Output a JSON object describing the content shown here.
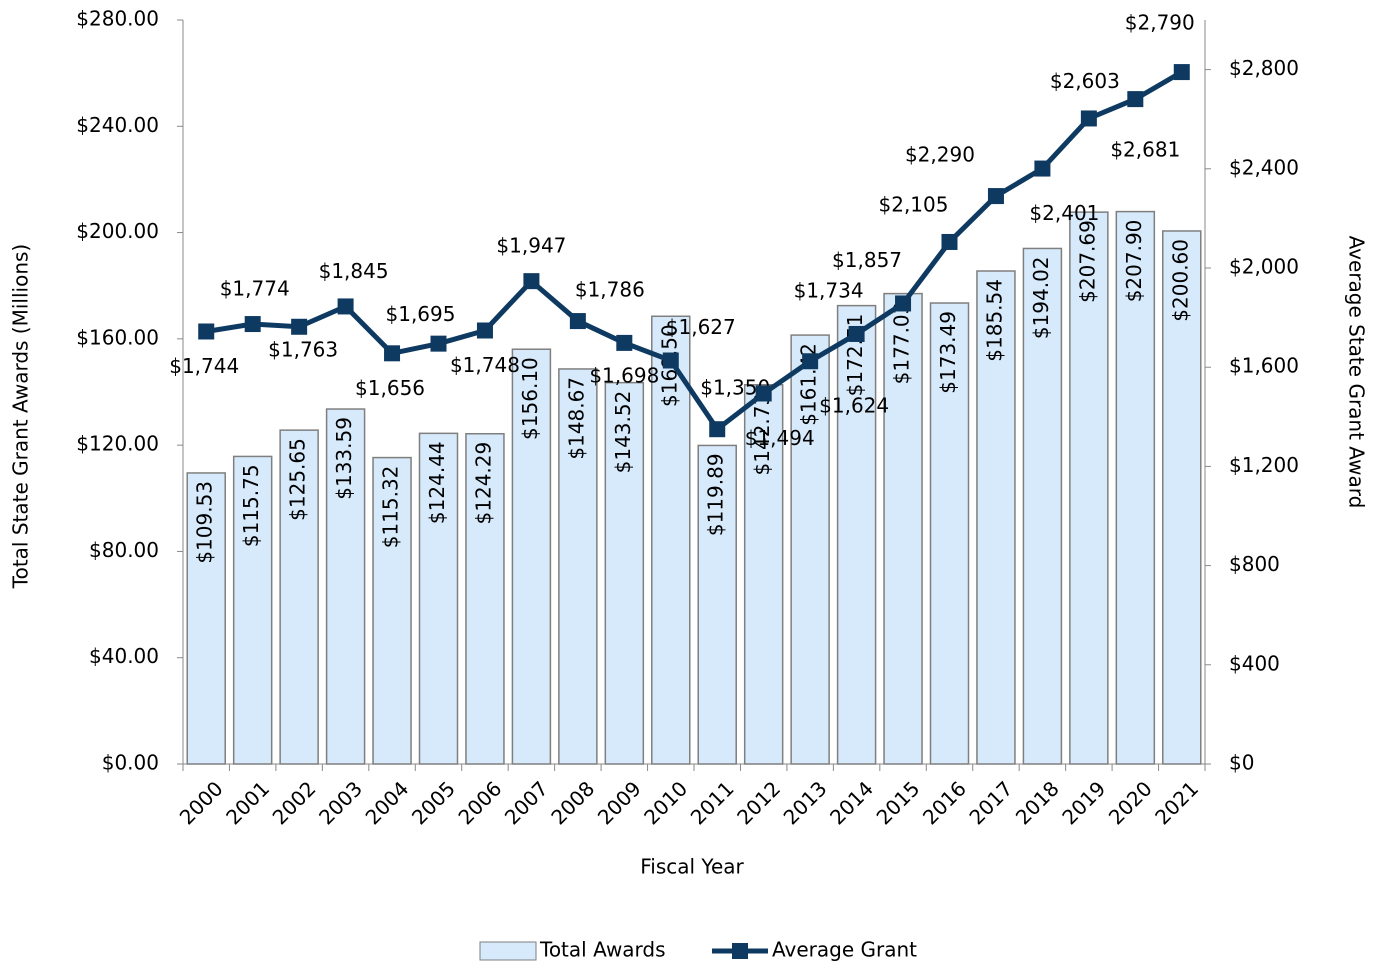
{
  "chart_data": {
    "type": "bar-line",
    "x_label": "Fiscal Year",
    "y_label": "Total State Grant Awards (Millions)",
    "y2_label": "Average State Grant Award",
    "categories": [
      "2000",
      "2001",
      "2002",
      "2003",
      "2004",
      "2005",
      "2006",
      "2007",
      "2008",
      "2009",
      "2010",
      "2011",
      "2012",
      "2013",
      "2014",
      "2015",
      "2016",
      "2017",
      "2018",
      "2019",
      "2020",
      "2021"
    ],
    "series": [
      {
        "name": "Total Awards",
        "type": "bar",
        "color": "#d6eafb",
        "edge": "#7f7f7f",
        "values": [
          109.53,
          115.75,
          125.65,
          133.59,
          115.32,
          124.44,
          124.29,
          156.1,
          148.67,
          143.52,
          168.5,
          119.89,
          142.73,
          161.42,
          172.51,
          177.03,
          173.49,
          185.54,
          194.02,
          207.69,
          207.9,
          200.6
        ],
        "value_labels": [
          "$109.53",
          "$115.75",
          "$125.65",
          "$133.59",
          "$115.32",
          "$124.44",
          "$124.29",
          "$156.10",
          "$148.67",
          "$143.52",
          "$168.50",
          "$119.89",
          "$142.73",
          "$161.42",
          "$172.51",
          "$177.03",
          "$173.49",
          "$185.54",
          "$194.02",
          "$207.69",
          "$207.90",
          "$200.60"
        ]
      },
      {
        "name": "Average Grant",
        "type": "line",
        "axis": "y2",
        "color": "#0e3a62",
        "values": [
          1744,
          1774,
          1763,
          1845,
          1656,
          1695,
          1748,
          1947,
          1786,
          1698,
          1627,
          1350,
          1494,
          1624,
          1734,
          1857,
          2105,
          2290,
          2401,
          2603,
          2681,
          2790
        ],
        "value_labels": [
          "$1,744",
          "$1,774",
          "$1,763",
          "$1,845",
          "$1,656",
          "$1,695",
          "$1,748",
          "$1,947",
          "$1,786",
          "$1,698",
          "$1,627",
          "$1,350",
          "$1,494",
          "$1,624",
          "$1,734",
          "$1,857",
          "$2,105",
          "$2,290",
          "$2,401",
          "$2,603",
          "$2,681",
          "$2,790"
        ]
      }
    ],
    "ylim": [
      0,
      280
    ],
    "yticks": [
      {
        "value": 0,
        "label": "$0.00"
      },
      {
        "value": 40,
        "label": "$40.00"
      },
      {
        "value": 80,
        "label": "$80.00"
      },
      {
        "value": 120,
        "label": "$120.00"
      },
      {
        "value": 160,
        "label": "$160.00"
      },
      {
        "value": 200,
        "label": "$200.00"
      },
      {
        "value": 240,
        "label": "$240.00"
      },
      {
        "value": 280,
        "label": "$280.00"
      }
    ],
    "y2lim": [
      0,
      3000
    ],
    "y2ticks": [
      {
        "value": 0,
        "label": "$0"
      },
      {
        "value": 400,
        "label": "$400"
      },
      {
        "value": 800,
        "label": "$800"
      },
      {
        "value": 1200,
        "label": "$1,200"
      },
      {
        "value": 1600,
        "label": "$1,600"
      },
      {
        "value": 2000,
        "label": "$2,000"
      },
      {
        "value": 2400,
        "label": "$2,400"
      },
      {
        "value": 2800,
        "label": "$2,800"
      }
    ],
    "legend": "bottom"
  }
}
